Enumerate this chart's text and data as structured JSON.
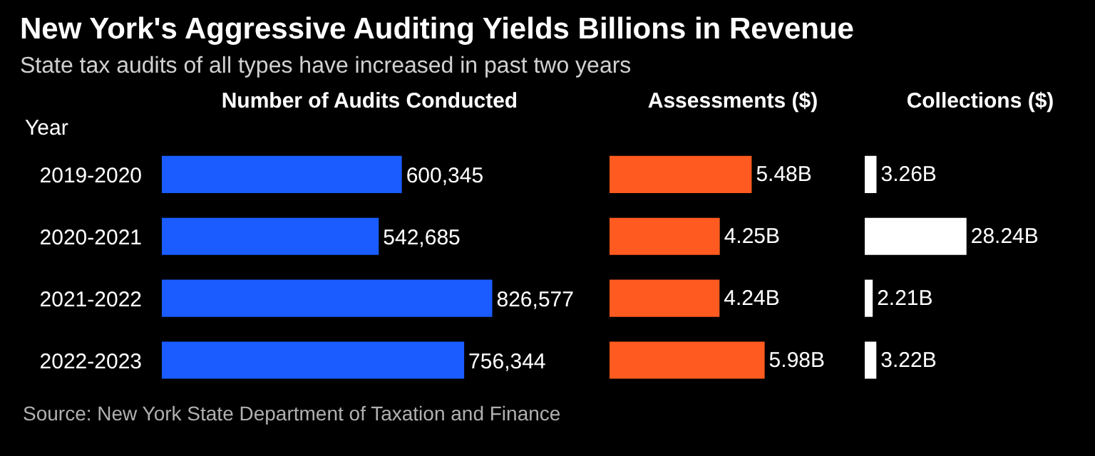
{
  "chart_data": [
    {
      "type": "bar",
      "orientation": "horizontal",
      "title": "New York's Aggressive Auditing Yields Billions in Revenue",
      "subtitle": "State tax audits of all types have increased in past two years",
      "xlabel": "Number of Audits Conducted",
      "ylabel": "Year",
      "categories": [
        "2019-2020",
        "2020-2021",
        "2021-2022",
        "2022-2023"
      ],
      "values": [
        600345,
        542685,
        826577,
        756344
      ],
      "value_labels": [
        "600,345",
        "542,685",
        "826,577",
        "756,344"
      ],
      "color": "#1a5cff",
      "tick_labels": "y",
      "annotations": [
        "Source: New York State Department of Taxation and Finance"
      ]
    },
    {
      "type": "bar",
      "orientation": "horizontal",
      "xlabel": "Assessments ($)",
      "values": [
        5.48,
        4.25,
        4.24,
        5.98
      ],
      "value_labels": [
        "5.48B",
        "4.25B",
        "4.24B",
        "5.98B"
      ],
      "color": "#ff5a1f",
      "tick_labels": false
    },
    {
      "type": "bar",
      "orientation": "horizontal",
      "xlabel": "Collections ($)",
      "values": [
        3.26,
        28.24,
        2.21,
        3.22
      ],
      "value_labels": [
        "3.26B",
        "28.24B",
        "2.21B",
        "3.22B"
      ],
      "color": "#ffffff",
      "tick_labels": false
    }
  ]
}
